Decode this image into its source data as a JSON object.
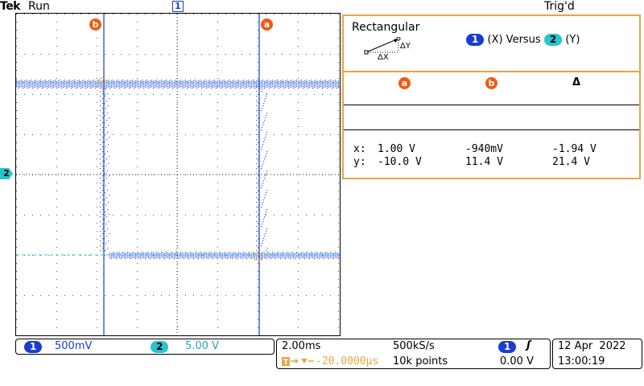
{
  "header": {
    "brand": "Tek",
    "run_status": "Run",
    "trigger_status": "Trig'd"
  },
  "markers": {
    "ch1_top": "1",
    "ch2_side": "2",
    "cursor_a": "a",
    "cursor_b": "b"
  },
  "measurement_panel": {
    "mode": "Rectangular",
    "delta_x_label": "ΔX",
    "delta_y_label": "ΔY",
    "xvy": {
      "ch1": "1",
      "x_text": "(X) Versus",
      "ch2": "2",
      "y_text": "(Y)"
    },
    "columns": {
      "a": "a",
      "b": "b",
      "delta": "Δ"
    },
    "rows": [
      {
        "label": "x:",
        "a": "1.00 V",
        "b": "-940mV",
        "delta": "-1.94 V"
      },
      {
        "label": "y:",
        "a": "-10.0 V",
        "b": "11.4 V",
        "delta": "21.4 V"
      }
    ]
  },
  "bottom": {
    "ch1": {
      "num": "1",
      "scale": "500mV"
    },
    "ch2": {
      "num": "2",
      "scale": "5.00 V"
    },
    "timebase": "2.00ms",
    "sample_rate": "500kS/s",
    "trigger_source": "1",
    "trigger_slope_icon": "rising-edge-icon",
    "trigger_slope_glyph": "ʃ",
    "trigger_level": "0.00 V",
    "delay": "-20.0000µs",
    "record_length": "10k points",
    "date": "12 Apr  2022",
    "time": "13:00:19"
  },
  "colors": {
    "ch1": "#1a3ccf",
    "ch2": "#27c5d0",
    "cursor": "#f05a13",
    "panel_border": "#e8a642"
  }
}
